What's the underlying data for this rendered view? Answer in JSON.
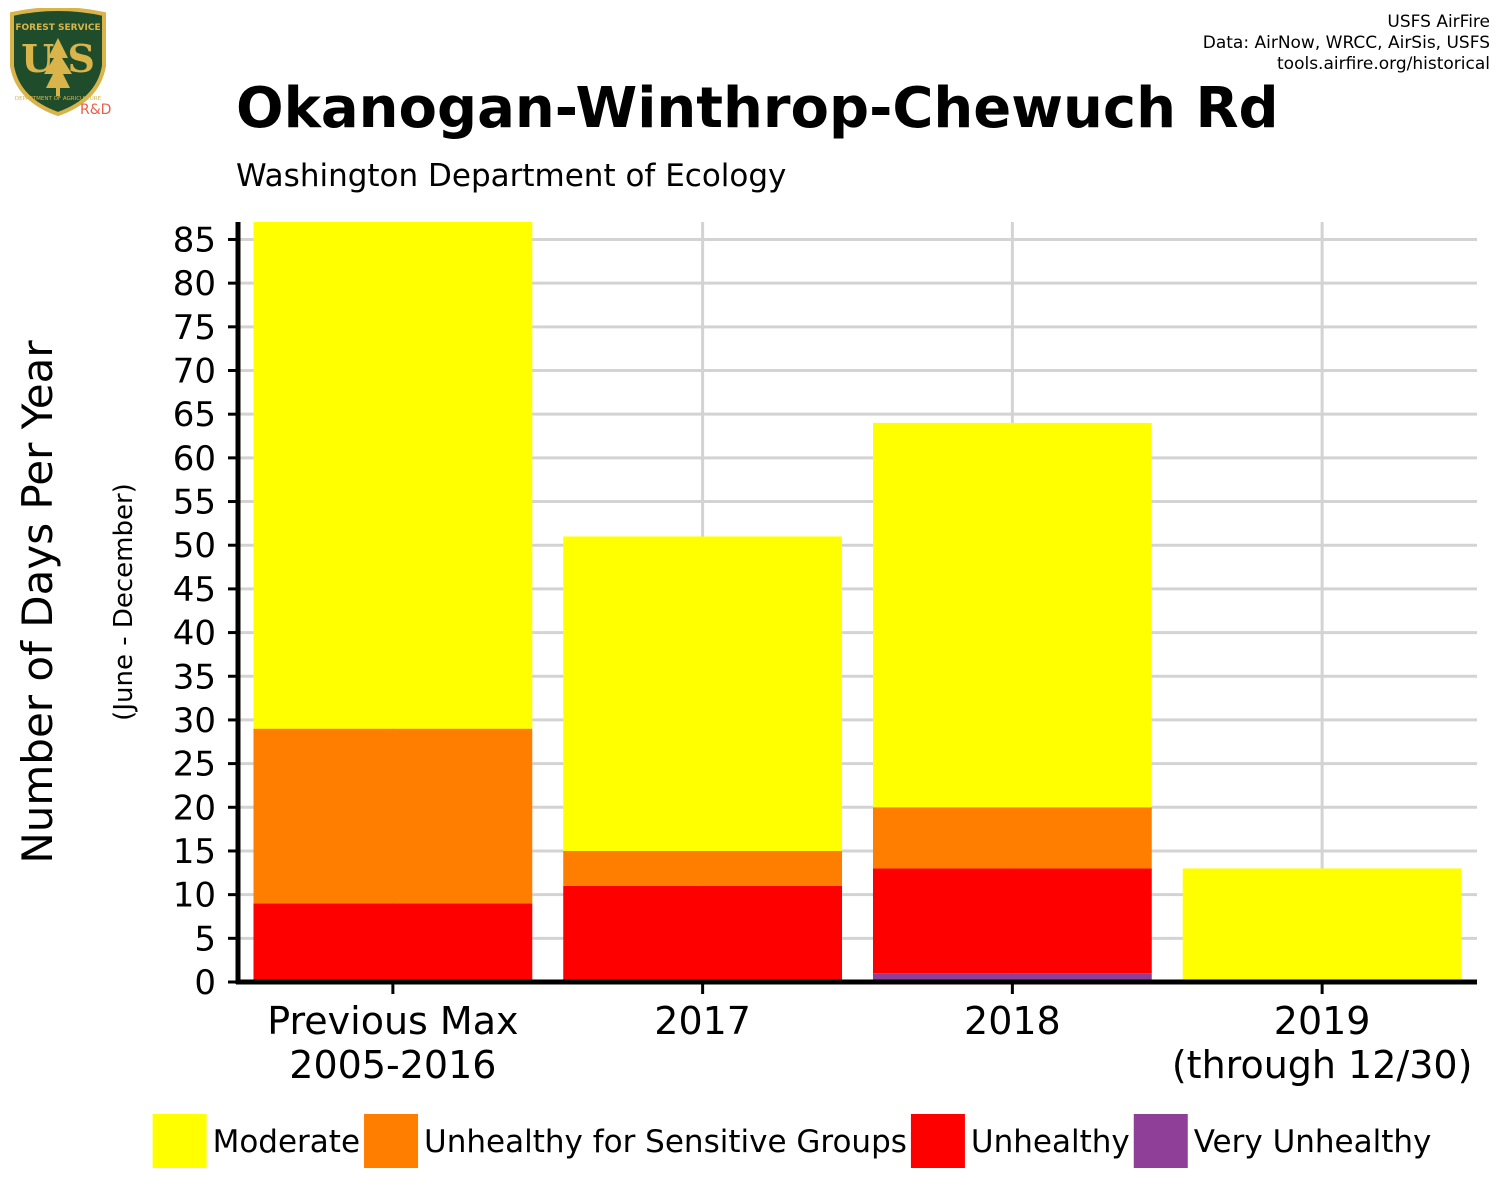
{
  "logo": {
    "top_text": "FOREST SERVICE",
    "main_text": "U S",
    "bottom_text": "DEPARTMENT OF AGRICULTURE",
    "badge": "R&D"
  },
  "credits": {
    "line1": "USFS AirFire",
    "line2": "Data: AirNow, WRCC, AirSis, USFS",
    "line3": "tools.airfire.org/historical"
  },
  "colors": {
    "Moderate": "#ffff00",
    "Unhealthy for Sensitive Groups": "#ff7e00",
    "Unhealthy": "#ff0000",
    "Very Unhealthy": "#8f3f97",
    "logo_green": "#1f4d2b",
    "logo_gold": "#d9b44a",
    "badge_red": "#e8604c"
  },
  "chart_data": {
    "type": "bar",
    "stacked": true,
    "title": "Okanogan-Winthrop-Chewuch Rd",
    "subtitle": "Washington Department of Ecology",
    "ylabel": "Number of Days Per Year",
    "ylabel_sub": "(June - December)",
    "xlabel": "",
    "ylim": [
      0,
      87
    ],
    "yticks": [
      0,
      5,
      10,
      15,
      20,
      25,
      30,
      35,
      40,
      45,
      50,
      55,
      60,
      65,
      70,
      75,
      80,
      85
    ],
    "grid": true,
    "legend_position": "bottom",
    "categories": [
      [
        "Previous Max",
        "2005-2016"
      ],
      [
        "2017"
      ],
      [
        "2018"
      ],
      [
        "2019",
        "(through 12/30)"
      ]
    ],
    "series": [
      {
        "name": "Very Unhealthy",
        "values": [
          0,
          0,
          1,
          0
        ]
      },
      {
        "name": "Unhealthy",
        "values": [
          9,
          11,
          12,
          0
        ]
      },
      {
        "name": "Unhealthy for Sensitive Groups",
        "values": [
          20,
          4,
          7,
          0
        ]
      },
      {
        "name": "Moderate",
        "values": [
          58,
          36,
          44,
          13
        ]
      }
    ],
    "legend": [
      "Moderate",
      "Unhealthy for Sensitive Groups",
      "Unhealthy",
      "Very Unhealthy"
    ]
  }
}
